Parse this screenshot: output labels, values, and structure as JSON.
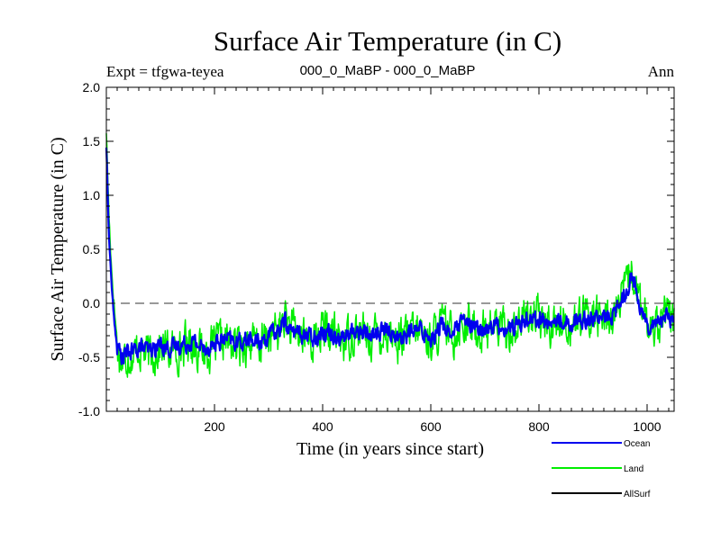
{
  "chart_data": {
    "type": "line",
    "title": "Surface Air Temperature (in C)",
    "subtitle_left": "Expt = tfgwa-teyea",
    "subtitle_center": "000_0_MaBP - 000_0_MaBP",
    "subtitle_right": "Ann",
    "xlabel": "Time (in years since start)",
    "ylabel": "Surface Air Temperature (in C)",
    "xlim": [
      0,
      1050
    ],
    "ylim": [
      -1.0,
      2.0
    ],
    "xticks": [
      200,
      400,
      600,
      800,
      1000
    ],
    "yticks": [
      -1.0,
      -0.5,
      0.0,
      0.5,
      1.0,
      1.5,
      2.0
    ],
    "ytick_labels": [
      "-1.0",
      "-0.5",
      "0.0",
      "0.5",
      "1.0",
      "1.5",
      "2.0"
    ],
    "reference_line": {
      "y": 0.0,
      "style": "dashed"
    },
    "series": [
      {
        "name": "Land",
        "color": "#00ee00",
        "x": [
          0,
          5,
          10,
          15,
          20,
          25,
          30,
          40,
          50,
          60,
          70,
          80,
          100,
          120,
          140,
          160,
          180,
          200,
          220,
          240,
          260,
          280,
          300,
          320,
          330,
          340,
          360,
          380,
          400,
          420,
          440,
          460,
          480,
          500,
          520,
          540,
          560,
          580,
          600,
          620,
          640,
          660,
          680,
          700,
          720,
          740,
          760,
          780,
          800,
          820,
          840,
          860,
          880,
          900,
          920,
          940,
          960,
          970,
          980,
          990,
          1000,
          1020,
          1040,
          1050
        ],
        "values": [
          1.6,
          0.8,
          0.3,
          -0.05,
          -0.35,
          -0.5,
          -0.55,
          -0.45,
          -0.5,
          -0.4,
          -0.45,
          -0.5,
          -0.4,
          -0.45,
          -0.4,
          -0.35,
          -0.45,
          -0.4,
          -0.35,
          -0.4,
          -0.35,
          -0.4,
          -0.3,
          -0.25,
          -0.1,
          -0.25,
          -0.3,
          -0.35,
          -0.25,
          -0.3,
          -0.35,
          -0.25,
          -0.3,
          -0.3,
          -0.25,
          -0.35,
          -0.3,
          -0.25,
          -0.35,
          -0.2,
          -0.3,
          -0.15,
          -0.25,
          -0.25,
          -0.2,
          -0.25,
          -0.2,
          -0.1,
          -0.15,
          -0.2,
          -0.15,
          -0.2,
          -0.15,
          -0.1,
          -0.15,
          -0.1,
          0.1,
          0.3,
          0.15,
          -0.1,
          -0.2,
          -0.15,
          -0.1,
          -0.2
        ]
      },
      {
        "name": "Ocean",
        "color": "#0000ee",
        "x": [
          0,
          5,
          10,
          15,
          20,
          25,
          30,
          40,
          50,
          60,
          70,
          80,
          100,
          120,
          140,
          160,
          180,
          200,
          220,
          240,
          260,
          280,
          300,
          320,
          330,
          340,
          360,
          380,
          400,
          420,
          440,
          460,
          480,
          500,
          520,
          540,
          560,
          580,
          600,
          620,
          640,
          660,
          680,
          700,
          720,
          740,
          760,
          780,
          800,
          820,
          840,
          860,
          880,
          900,
          920,
          940,
          960,
          970,
          980,
          990,
          1000,
          1020,
          1040,
          1050
        ],
        "values": [
          1.45,
          0.6,
          0.15,
          -0.2,
          -0.4,
          -0.45,
          -0.5,
          -0.45,
          -0.45,
          -0.4,
          -0.42,
          -0.45,
          -0.38,
          -0.42,
          -0.38,
          -0.35,
          -0.42,
          -0.38,
          -0.33,
          -0.37,
          -0.33,
          -0.37,
          -0.3,
          -0.25,
          -0.15,
          -0.25,
          -0.28,
          -0.32,
          -0.25,
          -0.28,
          -0.32,
          -0.25,
          -0.28,
          -0.28,
          -0.24,
          -0.32,
          -0.28,
          -0.24,
          -0.32,
          -0.2,
          -0.28,
          -0.17,
          -0.24,
          -0.24,
          -0.2,
          -0.24,
          -0.2,
          -0.12,
          -0.15,
          -0.2,
          -0.15,
          -0.18,
          -0.15,
          -0.12,
          -0.15,
          -0.1,
          0.1,
          0.25,
          0.15,
          -0.08,
          -0.2,
          -0.15,
          -0.12,
          -0.18
        ]
      },
      {
        "name": "AllSurf",
        "color": "#000000",
        "x": [],
        "values": []
      }
    ],
    "legend": {
      "placement": "bottom-right",
      "entries": [
        "Ocean",
        "Land",
        "AllSurf"
      ]
    }
  }
}
